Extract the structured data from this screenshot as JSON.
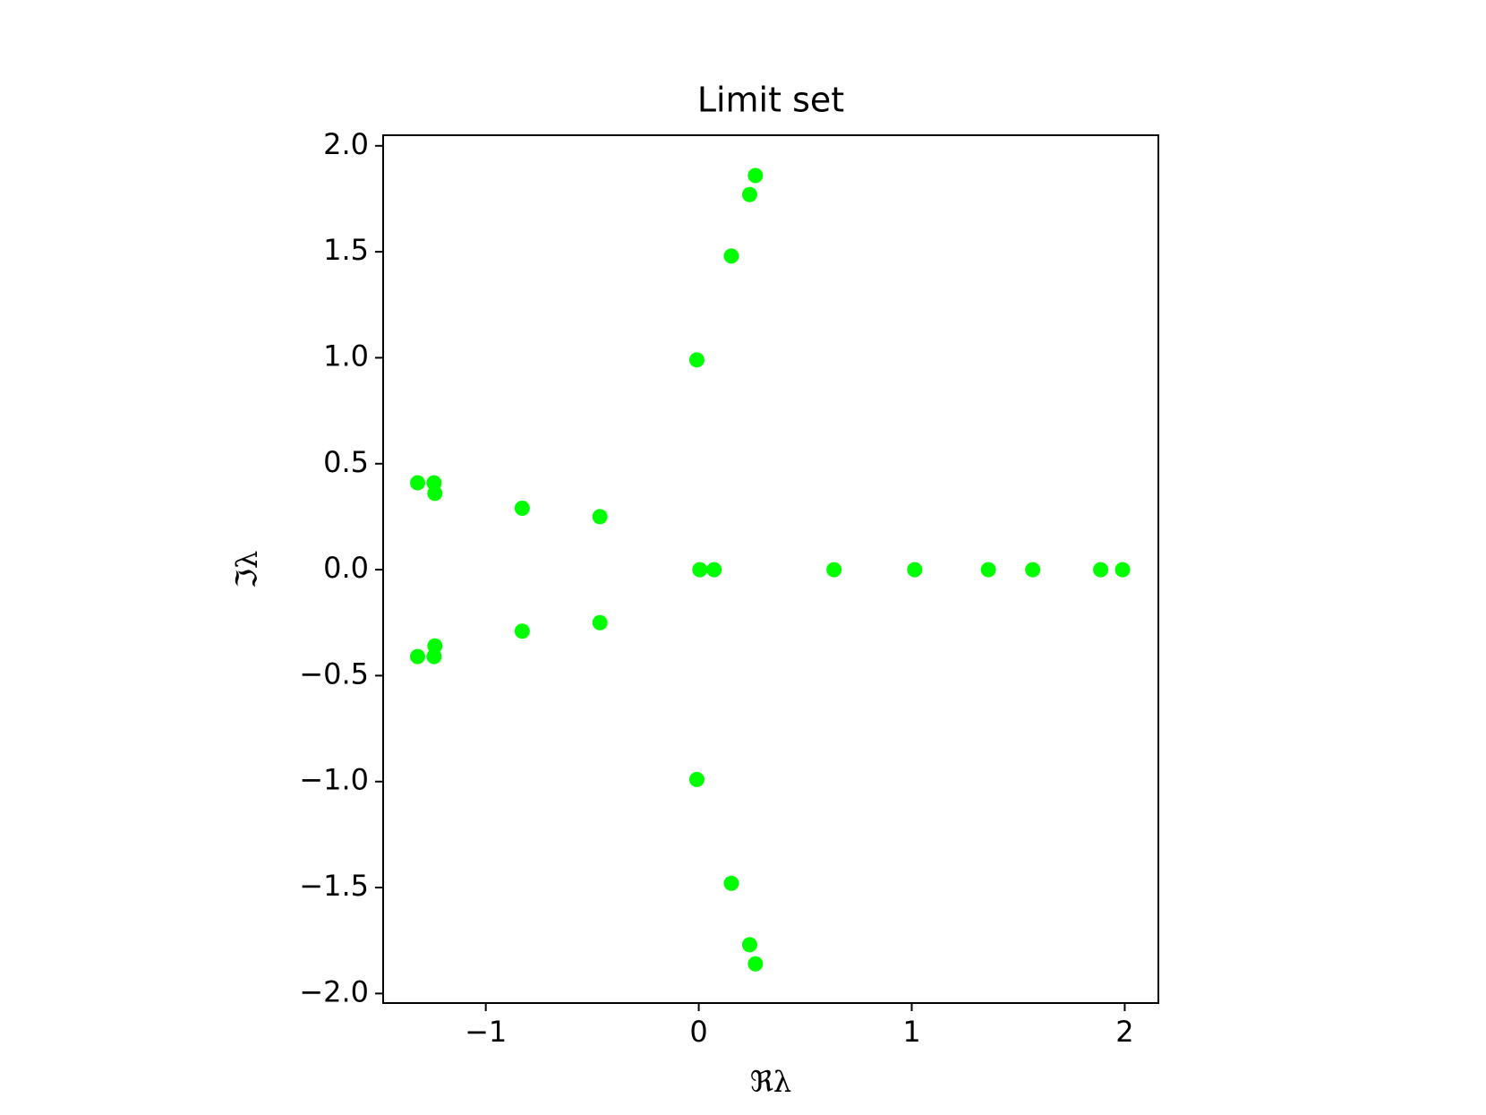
{
  "chart_data": {
    "type": "scatter",
    "title": "Limit set",
    "x_label": "ℜλ",
    "y_label": "ℑλ",
    "color": "#00ff00",
    "x": [
      -1.32,
      -1.243,
      -1.239,
      -0.829,
      -0.464,
      -0.009,
      0.153,
      0.239,
      0.266,
      -1.32,
      -1.243,
      -1.239,
      -0.829,
      -0.464,
      -0.009,
      0.153,
      0.239,
      0.266,
      0.005,
      0.072,
      0.635,
      1.014,
      1.36,
      1.568,
      1.887,
      1.99
    ],
    "values": [
      0.41,
      0.41,
      0.36,
      0.29,
      0.25,
      0.99,
      1.48,
      1.77,
      1.86,
      -0.41,
      -0.41,
      -0.36,
      -0.29,
      -0.25,
      -0.99,
      -1.48,
      -1.77,
      -1.86,
      0,
      0,
      0,
      0,
      0,
      0,
      0,
      0
    ],
    "xlim": [
      -1.482,
      2.158
    ],
    "ylim": [
      -2.045,
      2.05
    ],
    "xticks": [
      {
        "value": -1,
        "label": "−1"
      },
      0,
      1,
      2
    ],
    "yticks": [
      {
        "value": -2,
        "label": "−2.0"
      },
      {
        "value": -1.5,
        "label": "−1.5"
      },
      {
        "value": -1,
        "label": "−1.0"
      },
      {
        "value": -0.5,
        "label": "−0.5"
      },
      {
        "value": 0,
        "label": "0.0"
      },
      0.5,
      {
        "value": 1,
        "label": "1.0"
      },
      1.5,
      {
        "value": 2,
        "label": "2.0"
      }
    ]
  }
}
